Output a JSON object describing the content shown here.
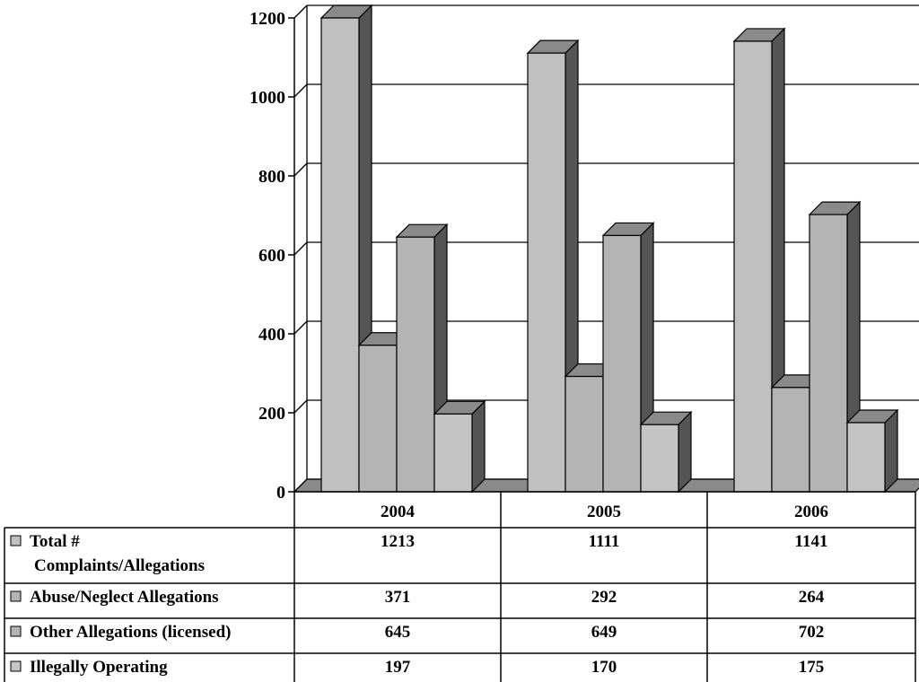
{
  "chart_data": {
    "type": "bar",
    "categories": [
      "2004",
      "2005",
      "2006"
    ],
    "series": [
      {
        "name": "Total # Complaints/Allegations",
        "values": [
          1213,
          1111,
          1141
        ]
      },
      {
        "name": "Abuse/Neglect Allegations",
        "values": [
          371,
          292,
          264
        ]
      },
      {
        "name": "Other Allegations (licensed)",
        "values": [
          645,
          649,
          702
        ]
      },
      {
        "name": "Illegally Operating",
        "values": [
          197,
          170,
          175
        ]
      }
    ],
    "series_label_lines": [
      [
        "Total #",
        "Complaints/Allegations"
      ],
      [
        "Abuse/Neglect Allegations"
      ],
      [
        "Other Allegations (licensed)"
      ],
      [
        "Illegally Operating"
      ]
    ],
    "ylim": [
      0,
      1200
    ],
    "yticks": [
      "0",
      "200",
      "400",
      "600",
      "800",
      "1000",
      "1200"
    ],
    "grid": true,
    "legend": "data table below chart",
    "colors": {
      "front": [
        "#c0c0c0",
        "#b4b4b4",
        "#b4b4b4",
        "#c4c4c4"
      ],
      "side": "#555555",
      "top": "#8a8a8a",
      "floor": "#8a8a8a"
    }
  }
}
